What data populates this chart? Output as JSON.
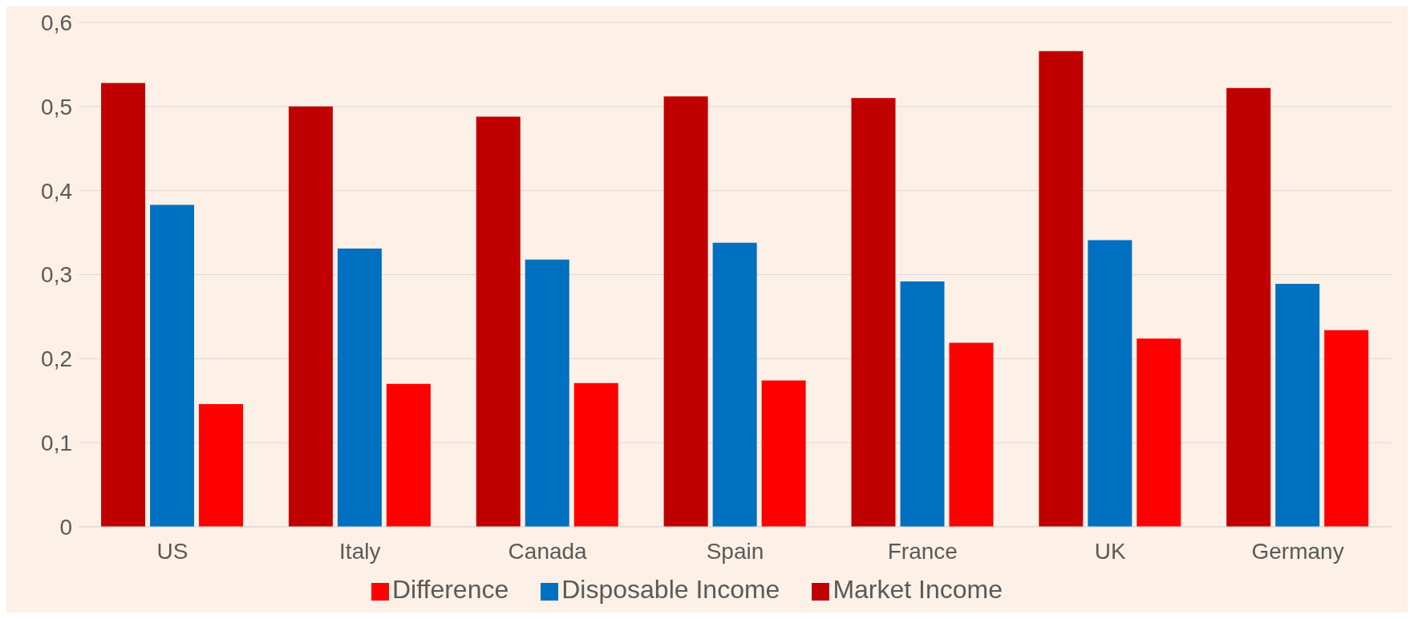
{
  "chart_data": {
    "type": "bar",
    "categories": [
      "US",
      "Italy",
      "Canada",
      "Spain",
      "France",
      "UK",
      "Germany"
    ],
    "series": [
      {
        "name": "Market Income",
        "color": "#c00000",
        "values": [
          0.528,
          0.5,
          0.488,
          0.512,
          0.51,
          0.566,
          0.522
        ]
      },
      {
        "name": "Disposable Income",
        "color": "#0070c0",
        "values": [
          0.383,
          0.331,
          0.318,
          0.338,
          0.292,
          0.341,
          0.289
        ]
      },
      {
        "name": "Difference",
        "color": "#ff0000",
        "values": [
          0.146,
          0.17,
          0.171,
          0.174,
          0.219,
          0.224,
          0.234
        ]
      }
    ],
    "ylim": [
      0,
      0.6
    ],
    "yticks": [
      0,
      {
        "value": 0.1,
        "label": "0,1"
      },
      {
        "value": 0.2,
        "label": "0,2"
      },
      {
        "value": 0.3,
        "label": "0,3"
      },
      {
        "value": 0.4,
        "label": "0,4"
      },
      {
        "value": 0.5,
        "label": "0,5"
      },
      {
        "value": 0.6,
        "label": "0,6"
      }
    ],
    "grid": "y",
    "legend": "bottom"
  }
}
